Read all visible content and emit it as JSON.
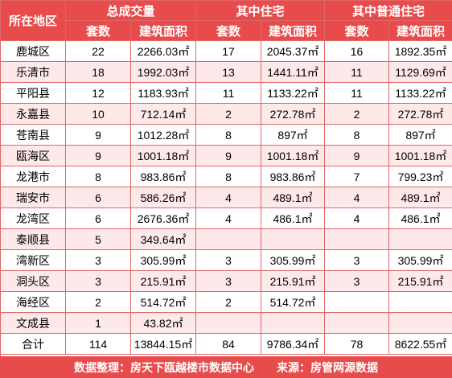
{
  "headers": {
    "region": "所在地区",
    "total": "总成交量",
    "residential": "其中住宅",
    "ordinary": "其中普通住宅",
    "count": "套数",
    "area": "建筑面积"
  },
  "rows": [
    [
      "鹿城区",
      "22",
      "2266.03㎡",
      "17",
      "2045.37㎡",
      "16",
      "1892.35㎡"
    ],
    [
      "乐清市",
      "18",
      "1992.03㎡",
      "13",
      "1441.11㎡",
      "11",
      "1129.69㎡"
    ],
    [
      "平阳县",
      "12",
      "1183.93㎡",
      "11",
      "1133.22㎡",
      "11",
      "1133.22㎡"
    ],
    [
      "永嘉县",
      "10",
      "712.14㎡",
      "2",
      "272.78㎡",
      "2",
      "272.78㎡"
    ],
    [
      "苍南县",
      "9",
      "1012.28㎡",
      "8",
      "897㎡",
      "8",
      "897㎡"
    ],
    [
      "瓯海区",
      "9",
      "1001.18㎡",
      "9",
      "1001.18㎡",
      "9",
      "1001.18㎡"
    ],
    [
      "龙港市",
      "8",
      "983.86㎡",
      "8",
      "983.86㎡",
      "7",
      "799.23㎡"
    ],
    [
      "瑞安市",
      "6",
      "586.26㎡",
      "4",
      "489.1㎡",
      "4",
      "489.1㎡"
    ],
    [
      "龙湾区",
      "6",
      "2676.36㎡",
      "4",
      "486.1㎡",
      "4",
      "486.1㎡"
    ],
    [
      "泰顺县",
      "5",
      "349.64㎡",
      "",
      "",
      "",
      ""
    ],
    [
      "湾新区",
      "3",
      "305.99㎡",
      "3",
      "305.99㎡",
      "3",
      "305.99㎡"
    ],
    [
      "洞头区",
      "3",
      "215.91㎡",
      "3",
      "215.91㎡",
      "3",
      "215.91㎡"
    ],
    [
      "海经区",
      "2",
      "514.72㎡",
      "2",
      "514.72㎡",
      "",
      ""
    ],
    [
      "文成县",
      "1",
      "43.82㎡",
      "",
      "",
      "",
      ""
    ],
    [
      "合计",
      "114",
      "13844.15㎡",
      "84",
      "9786.34㎡",
      "78",
      "8622.55㎡"
    ]
  ],
  "footer": "数据整理：房天下瓯越楼市数据中心　　来源：房管网源数据",
  "colors": {
    "header_bg": "#e84b4b",
    "alt_row_bg": "#fde9e9",
    "border": "#e06666"
  }
}
